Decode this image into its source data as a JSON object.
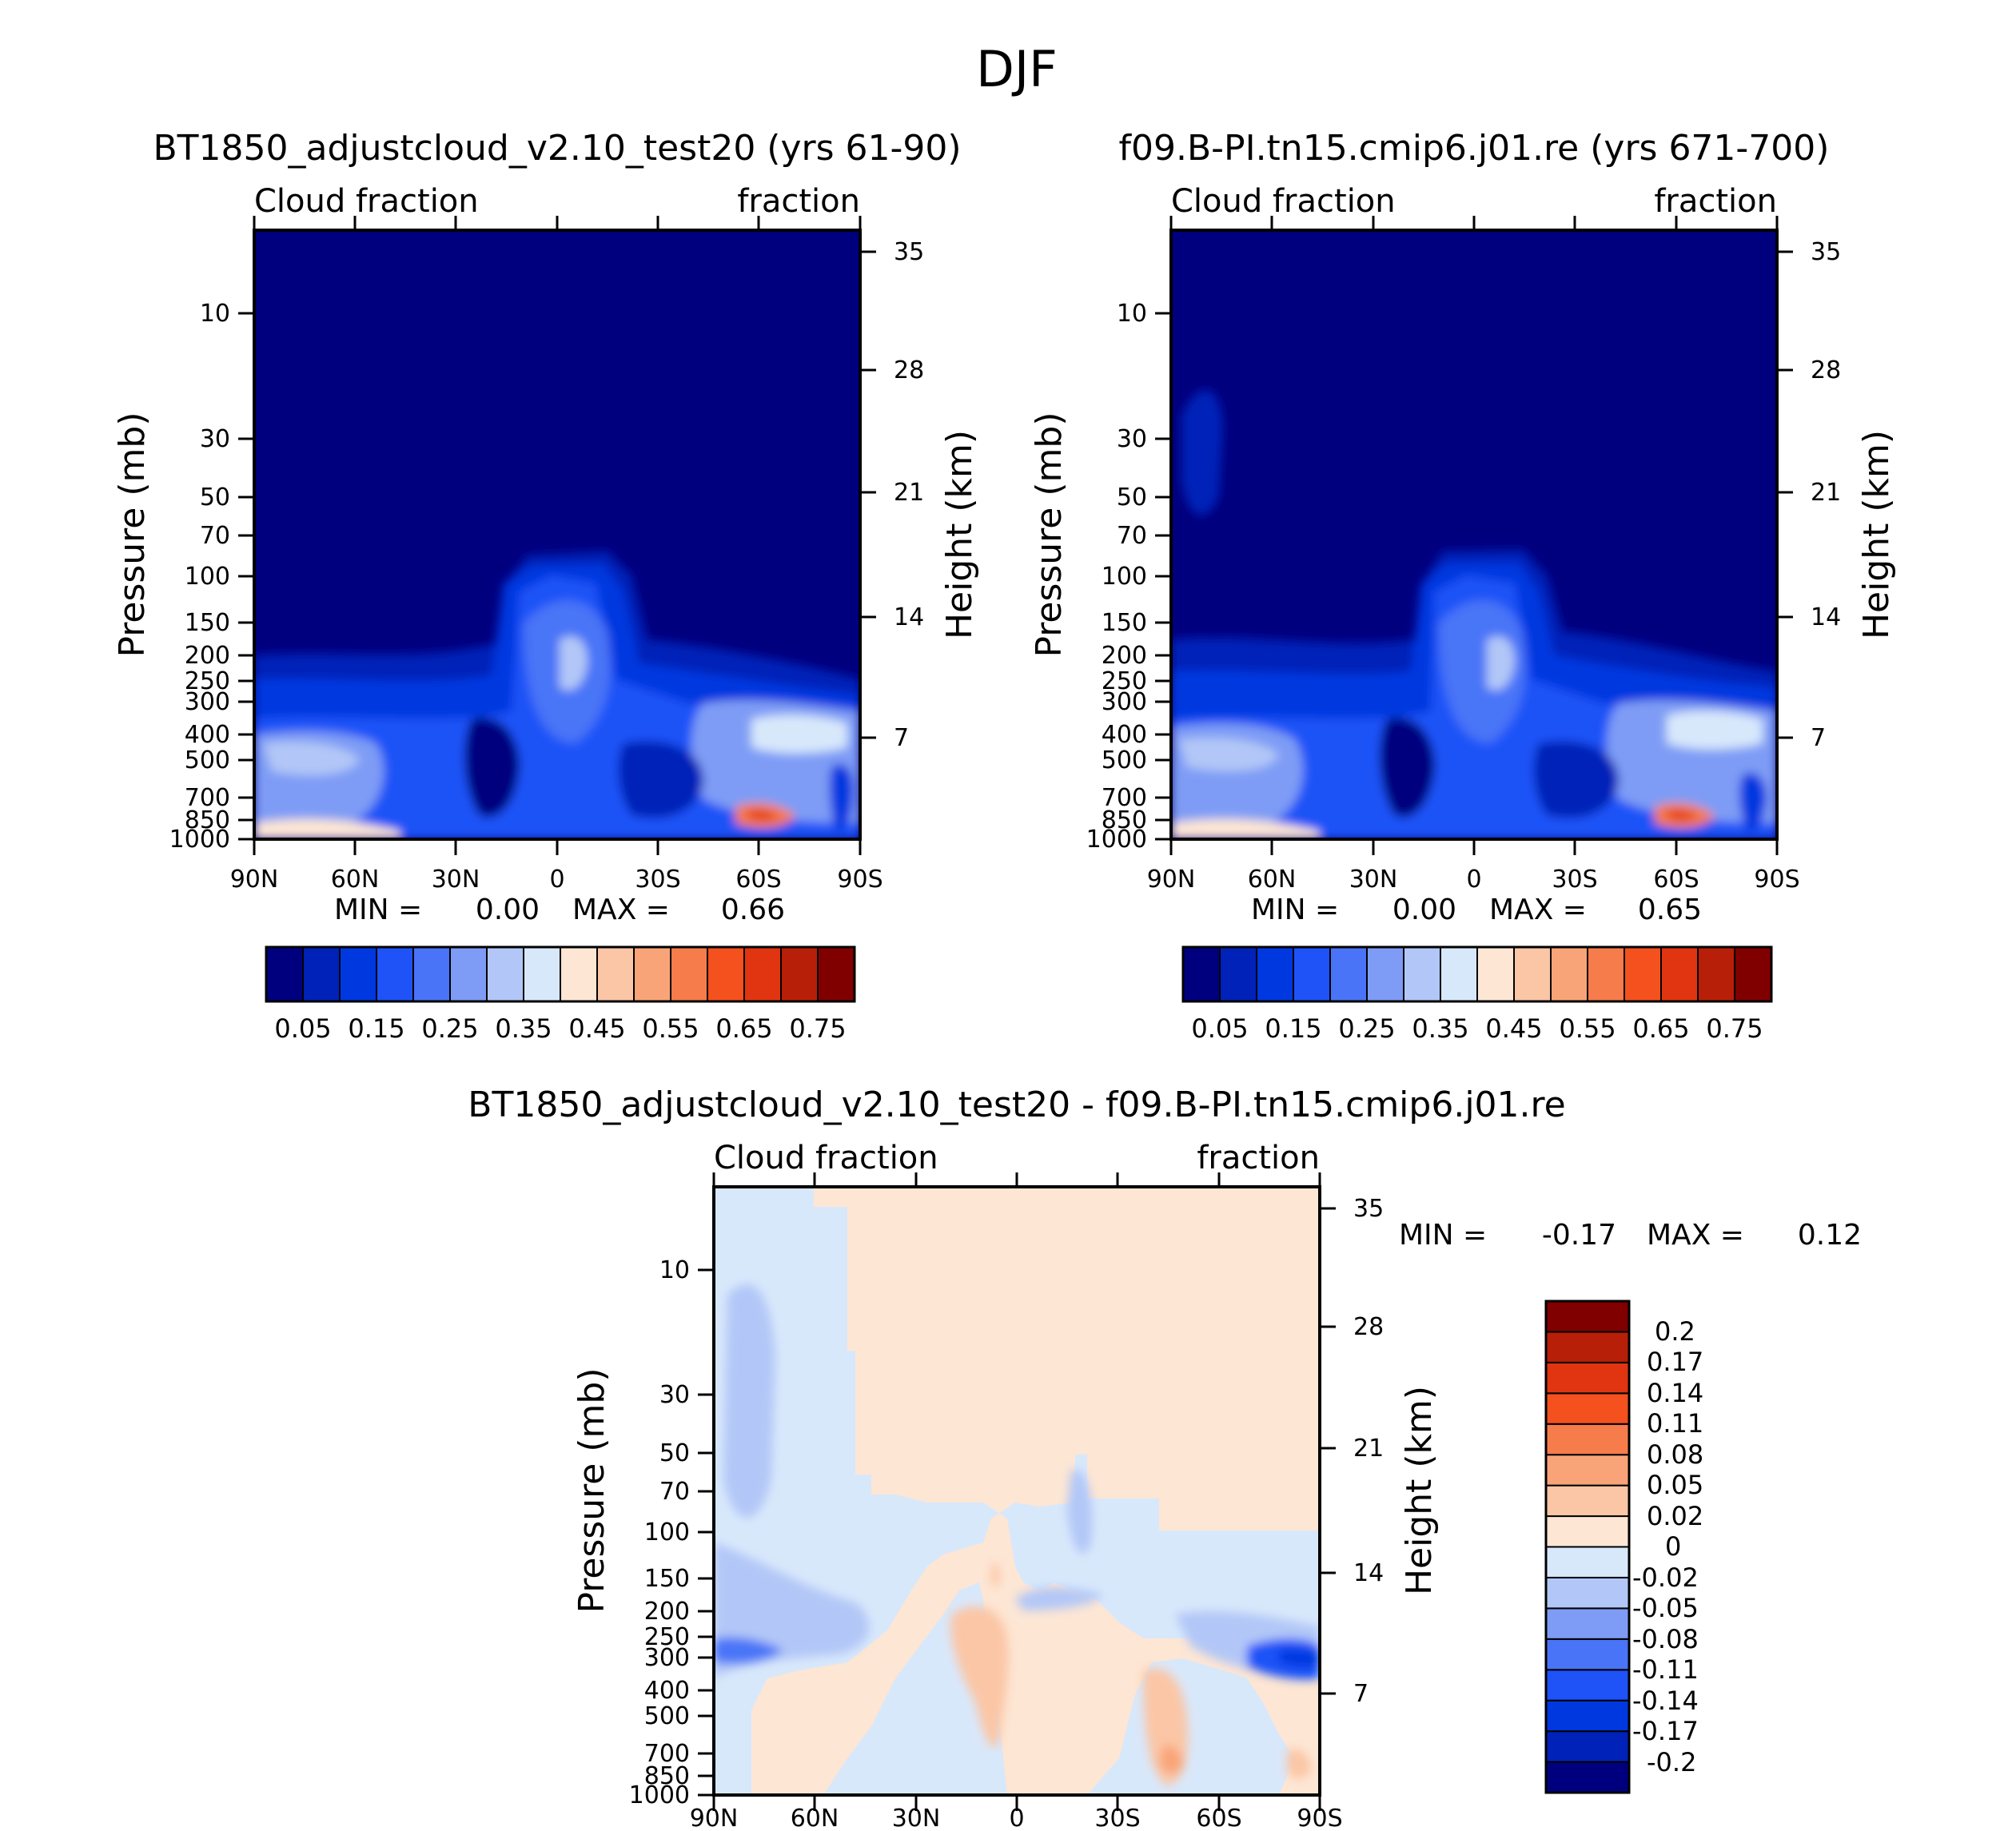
{
  "figure_title": "DJF",
  "chart_data": [
    {
      "type": "contour",
      "title": "BT1850_adjustcloud_v2.10_test20 (yrs 61-90)",
      "left_string": "Cloud fraction",
      "right_string": "fraction",
      "ylabel": "Pressure (mb)",
      "ylabel_right": "Height (km)",
      "x_ticks": [
        "90N",
        "60N",
        "30N",
        "0",
        "30S",
        "60S",
        "90S"
      ],
      "y_ticks": [
        "10",
        "30",
        "50",
        "70",
        "100",
        "150",
        "200",
        "250",
        "300",
        "400",
        "500",
        "700",
        "850",
        "1000"
      ],
      "y_ticks_right": [
        "35",
        "28",
        "21",
        "14",
        "7"
      ],
      "min_label": "MIN =",
      "min_value": "0.00",
      "max_label": "MAX =",
      "max_value": "0.66",
      "colorbar_labels": [
        "0.05",
        "0.15",
        "0.25",
        "0.35",
        "0.45",
        "0.55",
        "0.65",
        "0.75"
      ],
      "colorbar_colors": [
        "#00007f",
        "#0022b8",
        "#0038e0",
        "#1f52f7",
        "#4a74f7",
        "#7e9cf5",
        "#b2c7f7",
        "#d8e8fb",
        "#fde6d4",
        "#fbc6a6",
        "#f9a478",
        "#f67c4c",
        "#f4511f",
        "#e03510",
        "#b81f08",
        "#800000"
      ]
    },
    {
      "type": "contour",
      "title": "f09.B-PI.tn15.cmip6.j01.re (yrs 671-700)",
      "left_string": "Cloud fraction",
      "right_string": "fraction",
      "ylabel": "Pressure (mb)",
      "ylabel_right": "Height (km)",
      "x_ticks": [
        "90N",
        "60N",
        "30N",
        "0",
        "30S",
        "60S",
        "90S"
      ],
      "y_ticks": [
        "10",
        "30",
        "50",
        "70",
        "100",
        "150",
        "200",
        "250",
        "300",
        "400",
        "500",
        "700",
        "850",
        "1000"
      ],
      "y_ticks_right": [
        "35",
        "28",
        "21",
        "14",
        "7"
      ],
      "min_label": "MIN =",
      "min_value": "0.00",
      "max_label": "MAX =",
      "max_value": "0.65",
      "colorbar_labels": [
        "0.05",
        "0.15",
        "0.25",
        "0.35",
        "0.45",
        "0.55",
        "0.65",
        "0.75"
      ],
      "colorbar_colors": [
        "#00007f",
        "#0022b8",
        "#0038e0",
        "#1f52f7",
        "#4a74f7",
        "#7e9cf5",
        "#b2c7f7",
        "#d8e8fb",
        "#fde6d4",
        "#fbc6a6",
        "#f9a478",
        "#f67c4c",
        "#f4511f",
        "#e03510",
        "#b81f08",
        "#800000"
      ]
    },
    {
      "type": "contour",
      "title": "BT1850_adjustcloud_v2.10_test20 - f09.B-PI.tn15.cmip6.j01.re",
      "left_string": "Cloud fraction",
      "right_string": "fraction",
      "ylabel": "Pressure (mb)",
      "ylabel_right": "Height (km)",
      "x_ticks": [
        "90N",
        "60N",
        "30N",
        "0",
        "30S",
        "60S",
        "90S"
      ],
      "y_ticks": [
        "10",
        "30",
        "50",
        "70",
        "100",
        "150",
        "200",
        "250",
        "300",
        "400",
        "500",
        "700",
        "850",
        "1000"
      ],
      "y_ticks_right": [
        "35",
        "28",
        "21",
        "14",
        "7"
      ],
      "min_label": "MIN =",
      "min_value": "-0.17",
      "max_label": "MAX =",
      "max_value": "0.12",
      "colorbar_labels": [
        "0.2",
        "0.17",
        "0.14",
        "0.11",
        "0.08",
        "0.05",
        "0.02",
        "0",
        "-0.02",
        "-0.05",
        "-0.08",
        "-0.11",
        "-0.14",
        "-0.17",
        "-0.2"
      ],
      "colorbar_colors": [
        "#800000",
        "#b81f08",
        "#e03510",
        "#f4511f",
        "#f67c4c",
        "#f9a478",
        "#fbc6a6",
        "#fde6d4",
        "#d8e8fb",
        "#b2c7f7",
        "#7e9cf5",
        "#4a74f7",
        "#1f52f7",
        "#0038e0",
        "#0022b8",
        "#00007f"
      ]
    }
  ]
}
